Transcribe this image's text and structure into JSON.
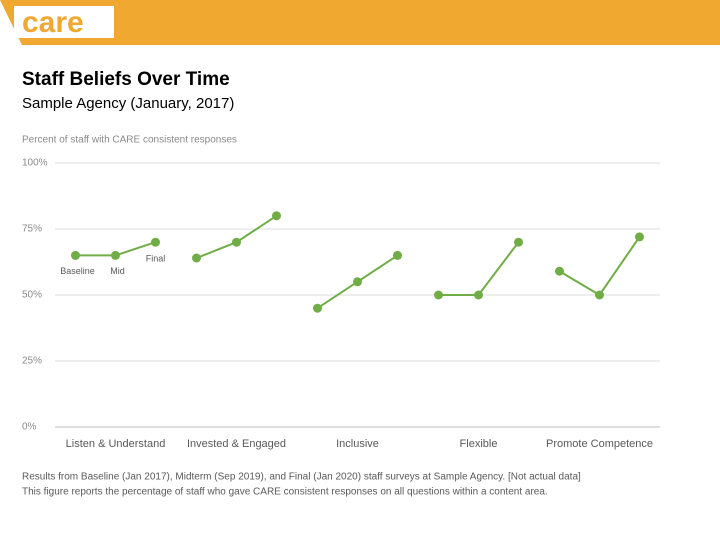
{
  "header": {
    "logo": "care"
  },
  "chart_data": {
    "type": "line",
    "title": "Staff Beliefs Over Time",
    "subtitle": "Sample Agency (January, 2017)",
    "y_label": "Percent of staff with CARE consistent responses",
    "categories": [
      "Listen & Understand",
      "Invested & Engaged",
      "Inclusive",
      "Flexible",
      "Promote Competence"
    ],
    "series": [
      {
        "name": "Baseline",
        "color": "#70ad47",
        "values": [
          65,
          64,
          45,
          50,
          59
        ]
      },
      {
        "name": "Mid",
        "color": "#70ad47",
        "values": [
          65,
          70,
          55,
          50,
          50
        ]
      },
      {
        "name": "Final",
        "color": "#70ad47",
        "values": [
          70,
          80,
          65,
          70,
          72
        ]
      }
    ],
    "ylim": [
      0,
      100
    ],
    "yticks": [
      {
        "value": 0,
        "label": "0%"
      },
      {
        "value": 25,
        "label": "25%"
      },
      {
        "value": 50,
        "label": "50%"
      },
      {
        "value": 75,
        "label": "75%"
      },
      {
        "value": 100,
        "label": "100%"
      }
    ],
    "grid": true,
    "notes": [
      "Results from Baseline (Jan 2017), Midterm (Sep 2019), and Final (Jan 2020) staff surveys at Sample Agency. [Not actual data]",
      "This figure reports the percentage of staff who gave CARE consistent responses on all questions within a content area."
    ]
  }
}
